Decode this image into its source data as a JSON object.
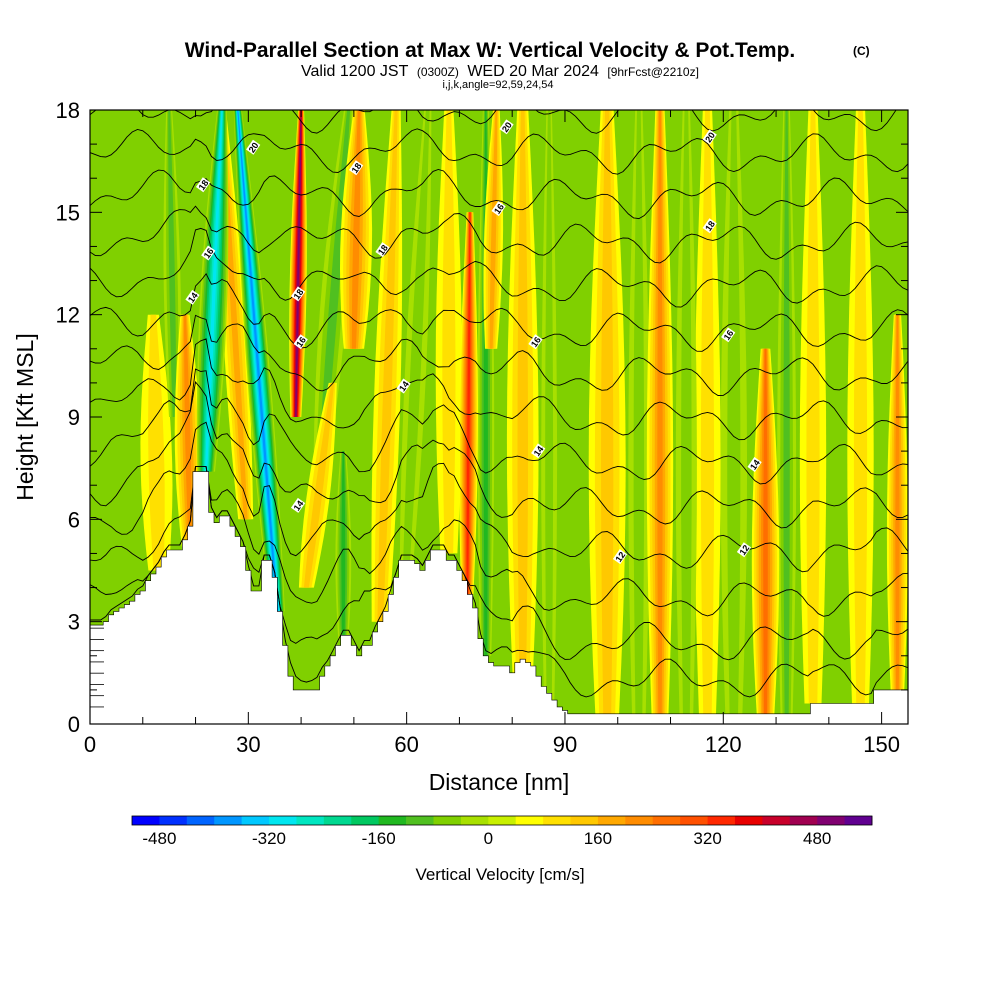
{
  "chart_data": {
    "type": "heatmap",
    "title": "Wind-Parallel Section at Max W: Vertical Velocity & Pot.Temp.",
    "title_suffix": "(C)",
    "subtitle_parts": [
      "Valid 1200 JST",
      "(0300Z)",
      "WED 20 Mar 2024",
      "[9hrFcst@2210z]"
    ],
    "subtitle_line2": "i,j,k,angle=92,59,24,54",
    "xlabel": "Distance [nm]",
    "ylabel": "Height [Kft MSL]",
    "xlim": [
      0,
      155
    ],
    "ylim": [
      0,
      18
    ],
    "x_ticks": [
      0,
      30,
      60,
      90,
      120,
      150
    ],
    "y_ticks": [
      0,
      3,
      6,
      9,
      12,
      15,
      18
    ],
    "colorbar": {
      "title": "Vertical Velocity [cm/s]",
      "ticks": [
        -480,
        -320,
        -160,
        0,
        160,
        320,
        480
      ],
      "min": -520,
      "max": 560,
      "step": 40,
      "colors": [
        "#0000ff",
        "#0030ff",
        "#0064ff",
        "#0096ff",
        "#00c8ff",
        "#00e6f0",
        "#00e6c0",
        "#00d890",
        "#00c860",
        "#20b820",
        "#50c020",
        "#80d000",
        "#a8e000",
        "#c8f000",
        "#ffff00",
        "#ffe000",
        "#ffc800",
        "#ffa800",
        "#ff8c00",
        "#ff6e00",
        "#ff5000",
        "#ff2800",
        "#e80000",
        "#c8002a",
        "#a00050",
        "#800070",
        "#600090"
      ]
    },
    "terrain": {
      "x": [
        0,
        1,
        2,
        3,
        4,
        5,
        6,
        7,
        8,
        9,
        10,
        11,
        12,
        13,
        14,
        15,
        16,
        17,
        18,
        19,
        20,
        21,
        22,
        23,
        24,
        25,
        26,
        27,
        28,
        29,
        30,
        31,
        32,
        33,
        34,
        35,
        36,
        37,
        38,
        39,
        40,
        41,
        42,
        43,
        44,
        45,
        46,
        47,
        48,
        49,
        50,
        51,
        52,
        53,
        54,
        55,
        56,
        57,
        58,
        59,
        60,
        61,
        62,
        63,
        64,
        65,
        66,
        67,
        68,
        69,
        70,
        71,
        72,
        73,
        74,
        75,
        76,
        77,
        78,
        79,
        80,
        81,
        82,
        83,
        84,
        85,
        86,
        87,
        88,
        89,
        90,
        91,
        92,
        93,
        94,
        95,
        96,
        97,
        98,
        99,
        100,
        101,
        102,
        103,
        104,
        105,
        106,
        107,
        108,
        109,
        110,
        111,
        112,
        113,
        114,
        115,
        116,
        117,
        118,
        119,
        120,
        121,
        122,
        123,
        124,
        125,
        126,
        127,
        128,
        129,
        130,
        131,
        132,
        133,
        134,
        135,
        136,
        137,
        138,
        139,
        140,
        141,
        142,
        143,
        144,
        145,
        146,
        147,
        148,
        149,
        150,
        151,
        152,
        153,
        154,
        155
      ],
      "height": [
        2.9,
        2.9,
        2.9,
        3.0,
        3.2,
        3.3,
        3.4,
        3.5,
        3.6,
        3.8,
        3.9,
        4.2,
        4.4,
        4.6,
        4.9,
        5.1,
        5.1,
        5.1,
        5.4,
        5.8,
        7.4,
        7.4,
        7.4,
        6.2,
        5.9,
        6.1,
        6.1,
        5.8,
        5.5,
        5.2,
        4.5,
        3.9,
        3.9,
        4.8,
        4.8,
        4.3,
        3.3,
        2.3,
        1.4,
        1.0,
        1.0,
        1.0,
        1.0,
        1.0,
        1.4,
        1.7,
        2.0,
        2.3,
        2.6,
        2.6,
        2.3,
        2.0,
        2.3,
        2.3,
        2.7,
        3.0,
        3.3,
        3.8,
        4.3,
        4.8,
        4.8,
        4.8,
        4.7,
        4.5,
        4.8,
        5.1,
        5.1,
        5.1,
        4.8,
        4.8,
        4.5,
        4.2,
        3.8,
        3.4,
        2.5,
        2.0,
        1.8,
        1.7,
        1.7,
        1.7,
        1.5,
        1.8,
        1.9,
        1.8,
        1.7,
        1.4,
        1.1,
        0.9,
        0.7,
        0.5,
        0.4,
        0.3,
        0.3,
        0.3,
        0.3,
        0.3,
        0.3,
        0.3,
        0.3,
        0.3,
        0.3,
        0.3,
        0.3,
        0.3,
        0.3,
        0.3,
        0.3,
        0.3,
        0.3,
        0.3,
        0.3,
        0.3,
        0.3,
        0.3,
        0.3,
        0.3,
        0.3,
        0.3,
        0.3,
        0.3,
        0.3,
        0.3,
        0.3,
        0.3,
        0.3,
        0.3,
        0.3,
        0.3,
        0.3,
        0.3,
        0.3,
        0.3,
        0.3,
        0.3,
        0.3,
        0.3,
        0.3,
        0.6,
        0.6,
        0.6,
        0.6,
        0.6,
        0.6,
        0.6,
        0.6,
        0.6,
        0.6,
        0.6,
        0.6,
        1.0,
        1.0,
        1.0,
        1.0,
        1.0,
        1.0,
        1.0
      ]
    },
    "w_features": [
      {
        "x": 22,
        "x_top": 25,
        "width": 2.6,
        "y0": 7.4,
        "y1": 18,
        "value": -300
      },
      {
        "x": 35.5,
        "x_top": 28,
        "width": 2.2,
        "y0": 3.3,
        "y1": 18,
        "value": -380
      },
      {
        "x": 39,
        "x_top": 40,
        "width": 1.6,
        "y0": 9,
        "y1": 18,
        "value": 460
      },
      {
        "x": 29.5,
        "x_top": 25,
        "width": 2.2,
        "y0": 6,
        "y1": 18,
        "value": 140
      },
      {
        "x": 19,
        "x_top": 18,
        "width": 2.5,
        "y0": 5.2,
        "y1": 12,
        "value": 200
      },
      {
        "x": 13,
        "x_top": 12,
        "width": 3.0,
        "y0": 4.5,
        "y1": 12,
        "value": 90
      },
      {
        "x": 16,
        "x_top": 15,
        "width": 1.6,
        "y0": 9,
        "y1": 18,
        "value": -110
      },
      {
        "x": 41,
        "x_top": 46,
        "width": 2.2,
        "y0": 4,
        "y1": 10,
        "value": 130
      },
      {
        "x": 44,
        "x_top": 49,
        "width": 2.5,
        "y0": 8,
        "y1": 18,
        "value": -120
      },
      {
        "x": 50,
        "x_top": 51,
        "width": 3.0,
        "y0": 11,
        "y1": 18,
        "value": 180
      },
      {
        "x": 48,
        "x_top": 48,
        "width": 1.5,
        "y0": 2.5,
        "y1": 8,
        "value": -160
      },
      {
        "x": 55,
        "x_top": 58,
        "width": 2.5,
        "y0": 3,
        "y1": 18,
        "value": 110
      },
      {
        "x": 60,
        "x_top": 64,
        "width": 2.0,
        "y0": 4.8,
        "y1": 18,
        "value": -90
      },
      {
        "x": 68,
        "x_top": 68,
        "width": 2.5,
        "y0": 5,
        "y1": 18,
        "value": 90
      },
      {
        "x": 71.5,
        "x_top": 72,
        "width": 1.8,
        "y0": 3.8,
        "y1": 15,
        "value": 330
      },
      {
        "x": 75,
        "x_top": 75,
        "width": 1.6,
        "y0": 2,
        "y1": 18,
        "value": -160
      },
      {
        "x": 76,
        "x_top": 77,
        "width": 1.8,
        "y0": 11,
        "y1": 18,
        "value": 160
      },
      {
        "x": 82,
        "x_top": 82,
        "width": 3.0,
        "y0": 1.5,
        "y1": 18,
        "value": 110
      },
      {
        "x": 87,
        "x_top": 87,
        "width": 1.5,
        "y0": 0.5,
        "y1": 18,
        "value": -90
      },
      {
        "x": 98,
        "x_top": 98,
        "width": 3.5,
        "y0": 0.3,
        "y1": 18,
        "value": 120
      },
      {
        "x": 104,
        "x_top": 104,
        "width": 2.0,
        "y0": 0.3,
        "y1": 18,
        "value": -80
      },
      {
        "x": 108,
        "x_top": 108,
        "width": 2.5,
        "y0": 0.3,
        "y1": 18,
        "value": 180
      },
      {
        "x": 113,
        "x_top": 113,
        "width": 2.0,
        "y0": 0.3,
        "y1": 18,
        "value": -80
      },
      {
        "x": 117,
        "x_top": 117,
        "width": 2.5,
        "y0": 0.3,
        "y1": 18,
        "value": 60
      },
      {
        "x": 122,
        "x_top": 122,
        "width": 2.5,
        "y0": 0.3,
        "y1": 18,
        "value": -60
      },
      {
        "x": 128,
        "x_top": 128,
        "width": 2.6,
        "y0": 0.3,
        "y1": 11,
        "value": 250
      },
      {
        "x": 132,
        "x_top": 132,
        "width": 1.8,
        "y0": 0.3,
        "y1": 18,
        "value": -110
      },
      {
        "x": 137,
        "x_top": 137,
        "width": 2.5,
        "y0": 0.6,
        "y1": 18,
        "value": 60
      },
      {
        "x": 146,
        "x_top": 146,
        "width": 2.5,
        "y0": 0.6,
        "y1": 18,
        "value": 60
      },
      {
        "x": 153,
        "x_top": 153,
        "width": 2.0,
        "y0": 1,
        "y1": 12,
        "value": 180
      }
    ],
    "contour_labels": [
      {
        "text": "20",
        "x": 31,
        "y": 16.9
      },
      {
        "text": "18",
        "x": 21.5,
        "y": 15.8
      },
      {
        "text": "16",
        "x": 22.5,
        "y": 13.8
      },
      {
        "text": "14",
        "x": 19.5,
        "y": 12.5
      },
      {
        "text": "18",
        "x": 39.5,
        "y": 12.6
      },
      {
        "text": "16",
        "x": 40,
        "y": 11.2
      },
      {
        "text": "14",
        "x": 39.5,
        "y": 6.4
      },
      {
        "text": "18",
        "x": 50.5,
        "y": 16.3
      },
      {
        "text": "18",
        "x": 55.5,
        "y": 13.9
      },
      {
        "text": "20",
        "x": 79,
        "y": 17.5
      },
      {
        "text": "16",
        "x": 77.5,
        "y": 15.1
      },
      {
        "text": "14",
        "x": 59.5,
        "y": 9.9
      },
      {
        "text": "16",
        "x": 84.5,
        "y": 11.2
      },
      {
        "text": "14",
        "x": 85,
        "y": 8.0
      },
      {
        "text": "12",
        "x": 100.5,
        "y": 4.9
      },
      {
        "text": "20",
        "x": 117.5,
        "y": 17.2
      },
      {
        "text": "18",
        "x": 117.5,
        "y": 14.6
      },
      {
        "text": "16",
        "x": 121,
        "y": 11.4
      },
      {
        "text": "14",
        "x": 126,
        "y": 7.6
      },
      {
        "text": "12",
        "x": 124,
        "y": 5.1
      }
    ]
  }
}
